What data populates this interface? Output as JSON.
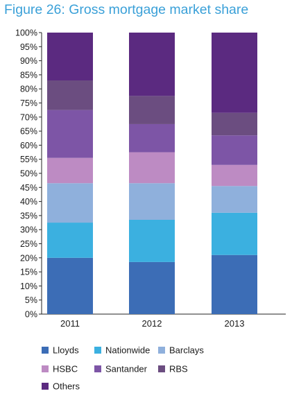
{
  "chart_data": {
    "type": "bar",
    "stacked": true,
    "title": "Figure 26: Gross mortgage market share",
    "categories": [
      "2011",
      "2012",
      "2013"
    ],
    "yticks": [
      "0%",
      "5%",
      "10%",
      "15%",
      "20%",
      "25%",
      "30%",
      "35%",
      "40%",
      "45%",
      "50%",
      "55%",
      "60%",
      "65%",
      "70%",
      "75%",
      "80%",
      "85%",
      "90%",
      "95%",
      "100%"
    ],
    "ylim": [
      0,
      100
    ],
    "grid": false,
    "legend_position": "bottom",
    "series": [
      {
        "name": "Lloyds",
        "color": "#3c6db6",
        "values": [
          20,
          18.5,
          21
        ]
      },
      {
        "name": "Nationwide",
        "color": "#3bb0e0",
        "values": [
          12.5,
          15,
          15
        ]
      },
      {
        "name": "Barclays",
        "color": "#8fb0dc",
        "values": [
          14,
          13,
          9.5
        ]
      },
      {
        "name": "HSBC",
        "color": "#bd8bc3",
        "values": [
          9,
          11,
          7.5
        ]
      },
      {
        "name": "Santander",
        "color": "#7d55a6",
        "values": [
          17,
          10,
          10.5
        ]
      },
      {
        "name": "RBS",
        "color": "#6b4d80",
        "values": [
          10.5,
          10,
          8
        ]
      },
      {
        "name": "Others",
        "color": "#5b2a80",
        "values": [
          17,
          22.5,
          28.5
        ]
      }
    ]
  }
}
